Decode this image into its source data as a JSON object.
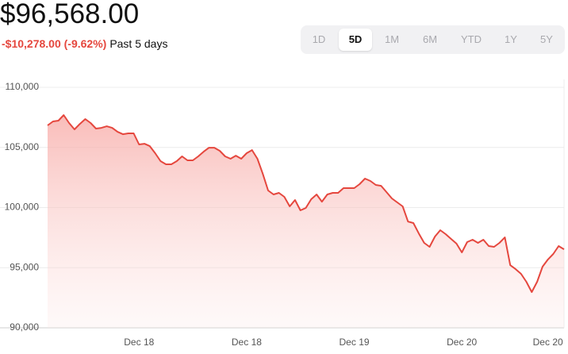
{
  "header": {
    "price": "$96,568.00",
    "change": "-$10,278.00 (-9.62%)",
    "period": "Past 5 days"
  },
  "ranges": {
    "options": [
      "1D",
      "5D",
      "1M",
      "6M",
      "YTD",
      "1Y",
      "5Y"
    ],
    "selected": "5D"
  },
  "chart_data": {
    "type": "area",
    "color": "#e5473e",
    "grid": true,
    "categories": [
      null,
      null,
      null,
      null,
      null,
      null,
      null,
      null,
      null,
      null,
      null,
      null,
      null,
      null,
      null,
      null,
      null,
      "Dec 18",
      null,
      null,
      null,
      null,
      null,
      null,
      null,
      null,
      null,
      null,
      null,
      null,
      null,
      null,
      null,
      null,
      null,
      null,
      null,
      "Dec 18",
      null,
      null,
      null,
      null,
      null,
      null,
      null,
      null,
      null,
      null,
      null,
      null,
      null,
      null,
      null,
      null,
      null,
      null,
      null,
      "Dec 19",
      null,
      null,
      null,
      null,
      null,
      null,
      null,
      null,
      null,
      null,
      null,
      null,
      null,
      null,
      null,
      null,
      null,
      null,
      null,
      "Dec 20",
      null,
      null,
      null,
      null,
      null,
      null,
      null,
      null,
      null,
      null,
      null,
      null,
      null,
      null,
      null,
      "Dec 20",
      null,
      null,
      null
    ],
    "values": [
      106830,
      107160,
      107230,
      107690,
      107030,
      106500,
      106960,
      107360,
      107030,
      106570,
      106630,
      106760,
      106630,
      106300,
      106100,
      106170,
      106170,
      105250,
      105310,
      105110,
      104520,
      103860,
      103600,
      103600,
      103860,
      104260,
      103930,
      103930,
      104260,
      104650,
      104980,
      104980,
      104720,
      104260,
      104060,
      104320,
      104060,
      104520,
      104780,
      104060,
      102800,
      101420,
      101090,
      101220,
      100890,
      100100,
      100630,
      99770,
      99970,
      100690,
      101090,
      100490,
      101090,
      101220,
      101220,
      101620,
      101620,
      101620,
      101950,
      102410,
      102210,
      101880,
      101810,
      101290,
      100760,
      100430,
      100100,
      98840,
      98710,
      97850,
      97060,
      96730,
      97590,
      98120,
      97790,
      97390,
      97000,
      96270,
      97130,
      97330,
      97060,
      97330,
      96800,
      96730,
      97060,
      97520,
      95210,
      94880,
      94490,
      93830,
      92970,
      93830,
      95080,
      95680,
      96140,
      96800,
      96530
    ],
    "ylim": [
      90000,
      110000
    ],
    "yticks": [
      {
        "value": 90000,
        "label": "90,000"
      },
      {
        "value": 95000,
        "label": "95,000"
      },
      {
        "value": 100000,
        "label": "100,000"
      },
      {
        "value": 105000,
        "label": "105,000"
      },
      {
        "value": 110000,
        "label": "110,000"
      }
    ]
  }
}
